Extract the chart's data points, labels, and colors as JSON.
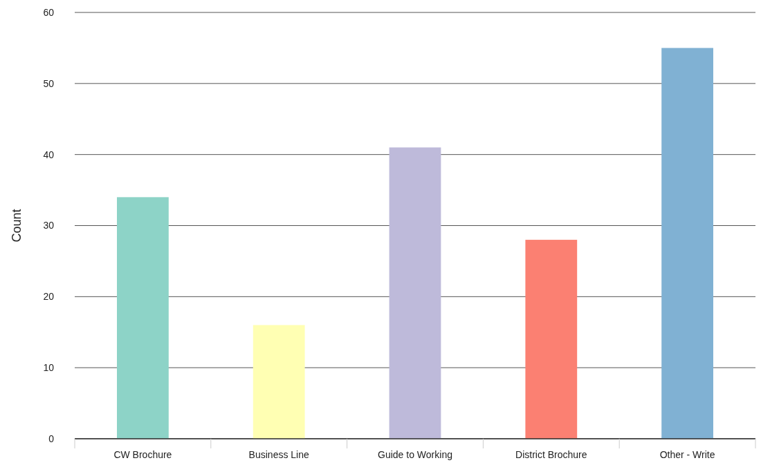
{
  "chart_data": {
    "type": "bar",
    "ylabel": "Count",
    "categories": [
      "CW Brochure",
      "Business Line",
      "Guide to Working",
      "District Brochure",
      "Other - Write"
    ],
    "values": [
      34,
      16,
      41,
      28,
      55
    ],
    "colors": [
      "#8dd3c7",
      "#ffffb3",
      "#bebada",
      "#fb8072",
      "#80b1d3"
    ],
    "ylim": [
      0,
      60
    ],
    "yticks": [
      0,
      10,
      20,
      30,
      40,
      50,
      60
    ],
    "grid": "y"
  }
}
